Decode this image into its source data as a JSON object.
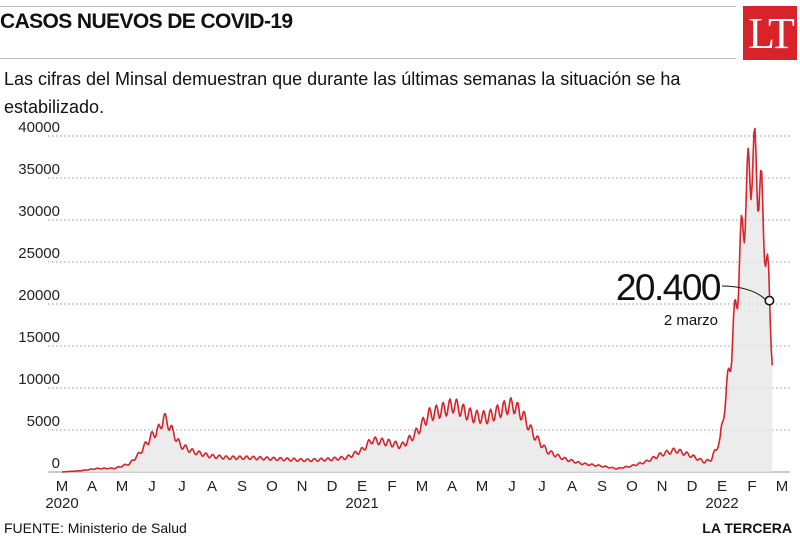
{
  "header": {
    "title": "CASOS NUEVOS DE COVID-19",
    "logo": "LT",
    "subtitle": "Las cifras del Minsal demuestran que durante las últimas semanas la situación se ha estabilizado."
  },
  "footer": {
    "source": "FUENTE: Ministerio de Salud",
    "brand": "LA TERCERA"
  },
  "colors": {
    "line": "#d9232a",
    "area": "#e6e6e6",
    "grid": "#9a9a9a"
  },
  "chart_data": {
    "type": "line",
    "title": "CASOS NUEVOS DE COVID-19",
    "xlabel": "",
    "ylabel": "",
    "ylim": [
      0,
      40000
    ],
    "yticks": [
      0,
      5000,
      10000,
      15000,
      20000,
      25000,
      30000,
      35000,
      40000
    ],
    "grid": true,
    "x_month_labels": [
      "M",
      "A",
      "M",
      "J",
      "J",
      "A",
      "S",
      "O",
      "N",
      "D",
      "E",
      "F",
      "M",
      "A",
      "M",
      "J",
      "J",
      "A",
      "S",
      "O",
      "N",
      "D",
      "E",
      "F",
      "M"
    ],
    "x_year_labels": [
      {
        "label": "2020",
        "month_index": 0
      },
      {
        "label": "2021",
        "month_index": 10
      },
      {
        "label": "2022",
        "month_index": 22
      }
    ],
    "annotation": {
      "value_label": "20.400",
      "date_label": "2 marzo",
      "x": "2022-03-02",
      "y": 20400
    },
    "series": [
      {
        "values_description": "daily new cases, weekly oscillation",
        "x": [
          "2020-03-01",
          "2020-03-20",
          "2020-04-05",
          "2020-04-25",
          "2020-05-10",
          "2020-05-20",
          "2020-06-01",
          "2020-06-10",
          "2020-06-14",
          "2020-06-20",
          "2020-07-01",
          "2020-07-15",
          "2020-08-01",
          "2020-08-20",
          "2020-09-10",
          "2020-10-01",
          "2020-10-20",
          "2020-11-10",
          "2020-12-01",
          "2020-12-20",
          "2021-01-05",
          "2021-01-15",
          "2021-02-01",
          "2021-02-15",
          "2021-03-01",
          "2021-03-15",
          "2021-04-01",
          "2021-04-10",
          "2021-04-20",
          "2021-05-01",
          "2021-05-15",
          "2021-06-01",
          "2021-06-10",
          "2021-06-20",
          "2021-07-01",
          "2021-07-15",
          "2021-08-01",
          "2021-08-20",
          "2021-09-10",
          "2021-09-25",
          "2021-10-10",
          "2021-10-25",
          "2021-11-10",
          "2021-11-25",
          "2021-12-10",
          "2021-12-25",
          "2022-01-01",
          "2022-01-10",
          "2022-01-16",
          "2022-01-22",
          "2022-01-28",
          "2022-02-03",
          "2022-02-08",
          "2022-02-12",
          "2022-02-17",
          "2022-02-22",
          "2022-02-26",
          "2022-03-02",
          "2022-03-05"
        ],
        "y": [
          0,
          150,
          400,
          450,
          1000,
          2200,
          4200,
          5200,
          6500,
          5500,
          3200,
          2400,
          1900,
          1700,
          1700,
          1600,
          1500,
          1400,
          1500,
          1700,
          2600,
          3800,
          3500,
          3100,
          4500,
          6800,
          7500,
          8000,
          7200,
          6600,
          6500,
          7600,
          8000,
          6800,
          4500,
          2500,
          1600,
          1000,
          700,
          400,
          700,
          1200,
          2100,
          2600,
          2000,
          1200,
          1500,
          3800,
          9000,
          14500,
          22000,
          30000,
          34500,
          37500,
          36000,
          32000,
          27000,
          20400,
          14000
        ]
      }
    ]
  }
}
